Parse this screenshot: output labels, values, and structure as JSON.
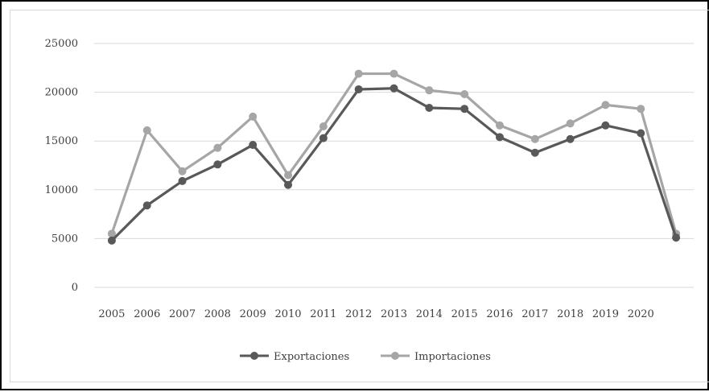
{
  "chart_data": {
    "type": "line",
    "x_tick_labels": [
      "2005",
      "2006",
      "2007",
      "2008",
      "2009",
      "2010",
      "2011",
      "2012",
      "2013",
      "2014",
      "2015",
      "2016",
      "2017",
      "2018",
      "2019",
      "2020"
    ],
    "x": [
      2005,
      2006,
      2007,
      2008,
      2009,
      2010,
      2011,
      2012,
      2013,
      2014,
      2015,
      2016,
      2017,
      2018,
      2019,
      2020,
      2021
    ],
    "ylim": [
      0,
      25000
    ],
    "y_ticks": [
      0,
      5000,
      10000,
      15000,
      20000,
      25000
    ],
    "grid": true,
    "legend_position": "bottom",
    "series": [
      {
        "name": "Exportaciones",
        "color": "#595959",
        "values": [
          4800,
          8400,
          10900,
          12600,
          14600,
          10500,
          15300,
          20300,
          20400,
          18400,
          18300,
          15400,
          13800,
          15200,
          16600,
          15800,
          5100
        ]
      },
      {
        "name": "Importaciones",
        "color": "#a6a6a6",
        "values": [
          5500,
          16100,
          11900,
          14300,
          17500,
          11500,
          16500,
          21900,
          21900,
          20200,
          19800,
          16600,
          15200,
          16800,
          18700,
          18300,
          5500
        ]
      }
    ]
  }
}
